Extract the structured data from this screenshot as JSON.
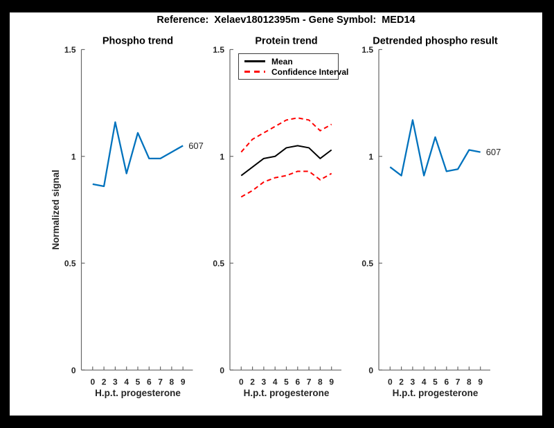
{
  "figure": {
    "title": "Reference:  Xelaev18012395m - Gene Symbol:  MED14",
    "background": "#ffffff",
    "frame_color": "#000000"
  },
  "colors": {
    "blue_line": "#0072bd",
    "red_dashed": "#ff0000",
    "black_line": "#000000",
    "axis": "#666666",
    "tick_text": "#262626",
    "title_text": "#000000"
  },
  "chart_data": [
    {
      "type": "line",
      "title": "Phospho trend",
      "xlabel": "H.p.t. progesterone",
      "ylabel": "Normalized signal",
      "categories": [
        "0",
        "2",
        "3",
        "4",
        "5",
        "6",
        "7",
        "8",
        "9"
      ],
      "yticks": [
        "0",
        "0.5",
        "1",
        "1.5"
      ],
      "ytick_values": [
        0,
        0.5,
        1,
        1.5
      ],
      "ylim": [
        0,
        1.5
      ],
      "grid": false,
      "series": [
        {
          "name": "607",
          "color": "#0072bd",
          "style": "solid",
          "values": [
            0.87,
            0.86,
            1.16,
            0.92,
            1.11,
            0.99,
            0.99,
            1.02,
            1.05
          ]
        }
      ],
      "end_label": "607"
    },
    {
      "type": "line",
      "title": "Protein trend",
      "xlabel": "H.p.t. progesterone",
      "ylabel": "",
      "categories": [
        "0",
        "2",
        "3",
        "4",
        "5",
        "6",
        "7",
        "8",
        "9"
      ],
      "yticks": [
        "0",
        "0.5",
        "1",
        "1.5"
      ],
      "ytick_values": [
        0,
        0.5,
        1,
        1.5
      ],
      "ylim": [
        0,
        1.5
      ],
      "grid": false,
      "series": [
        {
          "name": "Mean",
          "color": "#000000",
          "style": "solid",
          "values": [
            0.91,
            0.95,
            0.99,
            1.0,
            1.04,
            1.05,
            1.04,
            0.99,
            1.03
          ]
        },
        {
          "name": "Confidence Interval (upper)",
          "color": "#ff0000",
          "style": "dashed",
          "values": [
            1.02,
            1.08,
            1.11,
            1.14,
            1.17,
            1.18,
            1.17,
            1.12,
            1.15
          ]
        },
        {
          "name": "Confidence Interval (lower)",
          "color": "#ff0000",
          "style": "dashed",
          "values": [
            0.81,
            0.84,
            0.88,
            0.9,
            0.91,
            0.93,
            0.93,
            0.89,
            0.92
          ]
        }
      ],
      "legend": {
        "position": "top-left",
        "items": [
          {
            "label": "Mean",
            "color": "#000000",
            "style": "solid"
          },
          {
            "label": "Confidence Interval",
            "color": "#ff0000",
            "style": "dashed"
          }
        ]
      },
      "end_label": ""
    },
    {
      "type": "line",
      "title": "Detrended phospho result",
      "xlabel": "H.p.t. progesterone",
      "ylabel": "",
      "categories": [
        "0",
        "2",
        "3",
        "4",
        "5",
        "6",
        "7",
        "8",
        "9"
      ],
      "yticks": [
        "0",
        "0.5",
        "1",
        "1.5"
      ],
      "ytick_values": [
        0,
        0.5,
        1,
        1.5
      ],
      "ylim": [
        0,
        1.5
      ],
      "grid": false,
      "series": [
        {
          "name": "607",
          "color": "#0072bd",
          "style": "solid",
          "values": [
            0.95,
            0.91,
            1.17,
            0.91,
            1.09,
            0.93,
            0.94,
            1.03,
            1.02
          ]
        }
      ],
      "end_label": "607"
    }
  ]
}
